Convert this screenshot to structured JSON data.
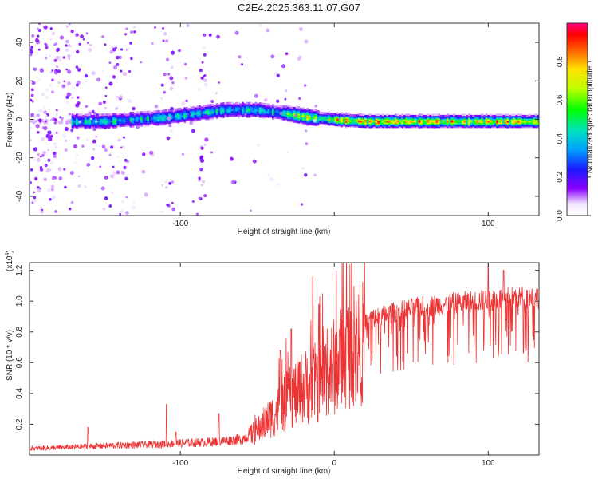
{
  "title": "C2E4.2025.363.11.07.G07",
  "colors": {
    "spectro_low": "#7a00ff",
    "snr_line": "#ee3333",
    "frame": "#333333"
  },
  "chart_data": [
    {
      "type": "heatmap",
      "title": "C2E4.2025.363.11.07.G07",
      "xlabel": "Height of straight line (km)",
      "ylabel": "Frequency (Hz)",
      "xlim": [
        -198,
        133
      ],
      "ylim": [
        -50,
        50
      ],
      "xticks": [
        -100,
        0,
        100
      ],
      "xtick_labels": [
        "-100",
        "",
        "100"
      ],
      "yticks": [
        -40,
        -20,
        0,
        20,
        40
      ],
      "ytick_labels": [
        "-40",
        "-20",
        "0",
        "20",
        "40"
      ],
      "colorbar": {
        "label": "Normalized spectral amplitude",
        "range": [
          0,
          1
        ],
        "ticks": [
          0.0,
          0.2,
          0.4,
          0.6,
          0.8
        ],
        "tick_labels": [
          "0.0",
          "0.2",
          "0.4",
          "0.6",
          "0.8"
        ]
      },
      "ridge": [
        {
          "x": -170,
          "y": -1
        },
        {
          "x": -150,
          "y": -1
        },
        {
          "x": -130,
          "y": 0
        },
        {
          "x": -110,
          "y": 1
        },
        {
          "x": -90,
          "y": 3
        },
        {
          "x": -70,
          "y": 5
        },
        {
          "x": -50,
          "y": 5
        },
        {
          "x": -30,
          "y": 3
        },
        {
          "x": -15,
          "y": 1
        },
        {
          "x": 0,
          "y": 0
        },
        {
          "x": 20,
          "y": -1
        },
        {
          "x": 60,
          "y": -1
        },
        {
          "x": 100,
          "y": -1
        },
        {
          "x": 133,
          "y": -1
        }
      ]
    },
    {
      "type": "line",
      "xlabel": "Height of straight line (km)",
      "ylabel": "SNR (10 * v/v)",
      "scale_label": "(x10",
      "scale_exp": "4",
      "scale_close": ")",
      "xlim": [
        -198,
        133
      ],
      "ylim": [
        0,
        1.25
      ],
      "xticks": [
        -100,
        0,
        100
      ],
      "xtick_labels": [
        "-100",
        "0",
        "100"
      ],
      "yticks": [
        0.2,
        0.4,
        0.6,
        0.8,
        1.0,
        1.2
      ],
      "ytick_labels": [
        "0.2",
        "0.4",
        "0.6",
        "0.8",
        "1.0",
        "1.2"
      ],
      "envelope": [
        {
          "x": -198,
          "y": 0.05
        },
        {
          "x": -170,
          "y": 0.06
        },
        {
          "x": -150,
          "y": 0.07
        },
        {
          "x": -120,
          "y": 0.08
        },
        {
          "x": -100,
          "y": 0.09
        },
        {
          "x": -80,
          "y": 0.1
        },
        {
          "x": -60,
          "y": 0.12
        },
        {
          "x": -50,
          "y": 0.2
        },
        {
          "x": -40,
          "y": 0.32
        },
        {
          "x": -30,
          "y": 0.45
        },
        {
          "x": -20,
          "y": 0.55
        },
        {
          "x": -10,
          "y": 0.6
        },
        {
          "x": 0,
          "y": 0.72
        },
        {
          "x": 10,
          "y": 0.85
        },
        {
          "x": 20,
          "y": 0.92
        },
        {
          "x": 40,
          "y": 0.98
        },
        {
          "x": 60,
          "y": 1.02
        },
        {
          "x": 80,
          "y": 1.04
        },
        {
          "x": 100,
          "y": 1.06
        },
        {
          "x": 120,
          "y": 1.08
        },
        {
          "x": 133,
          "y": 1.08
        }
      ],
      "spikes": [
        {
          "x": -160,
          "y": 0.18
        },
        {
          "x": -109,
          "y": 0.33
        },
        {
          "x": -103,
          "y": 0.15
        },
        {
          "x": -75,
          "y": 0.27
        },
        {
          "x": -35,
          "y": 0.68
        },
        {
          "x": -28,
          "y": 0.82
        },
        {
          "x": -14,
          "y": 1.16
        },
        {
          "x": -10,
          "y": 0.98
        },
        {
          "x": 100,
          "y": 1.25
        },
        {
          "x": 110,
          "y": 1.2
        }
      ]
    }
  ]
}
